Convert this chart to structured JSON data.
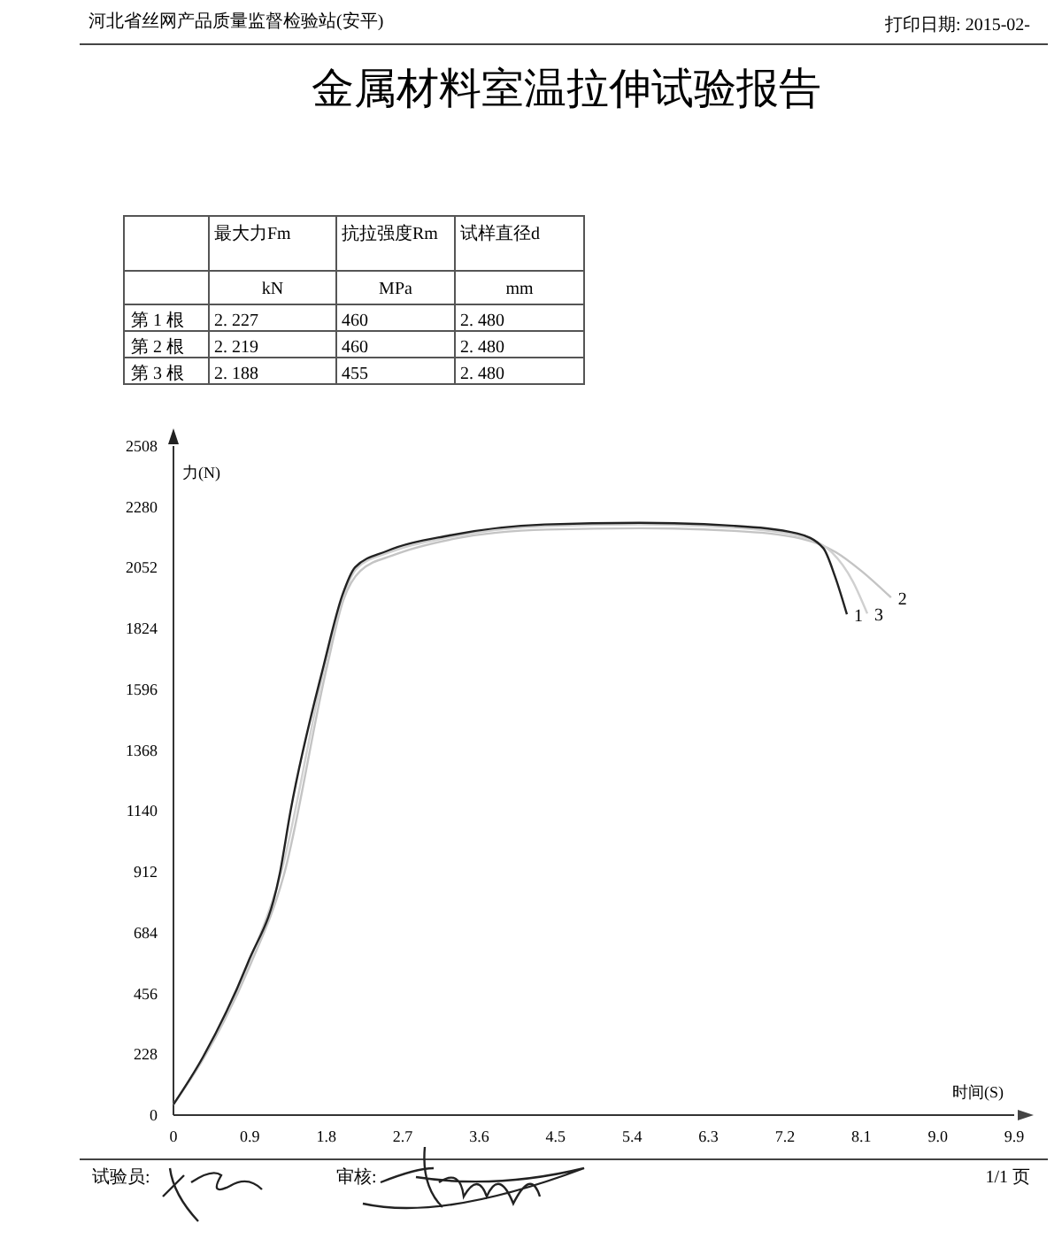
{
  "chart_data": [
    {
      "type": "other",
      "title": "金属材料室温拉伸试验报告",
      "annotations": [
        "河北省丝网产品质量监督检验站(安平)",
        "打印日期: 2015-02-",
        "试验员:",
        "审核:",
        "1/1 页"
      ],
      "cell_labels": [
        [
          null,
          "最大力Fm",
          "抗拉强度Rm",
          "试样直径d"
        ],
        [
          null,
          "kN",
          "MPa",
          "mm"
        ],
        [
          "第 1 根",
          "2. 227",
          "460",
          "2. 480"
        ],
        [
          "第 2 根",
          "2. 219",
          "460",
          "2. 480"
        ],
        [
          "第 3 根",
          "2. 188",
          "455",
          "2. 480"
        ]
      ]
    },
    {
      "type": "line",
      "xlabel": "时间(S)",
      "ylabel": "力(N)",
      "xlim": [
        0,
        9.9
      ],
      "ylim": [
        0,
        2508
      ],
      "xticks": [
        0,
        0.9,
        1.8,
        2.7,
        3.6,
        4.5,
        5.4,
        6.3,
        7.2,
        8.1,
        {
          "value": 9,
          "label": "9.0"
        },
        9.9
      ],
      "yticks": [
        0,
        228,
        456,
        684,
        912,
        1140,
        1368,
        1596,
        1824,
        2052,
        2280,
        2508
      ],
      "series": [
        {
          "name": "2",
          "color": "#c4c4c4",
          "x": [
            0,
            0.35,
            0.9,
            1.3,
            1.8,
            2.0,
            2.2,
            2.6,
            3.3,
            4.4,
            5.5,
            6.6,
            7.4,
            7.8,
            8.1,
            8.45
          ],
          "values": [
            40,
            210,
            560,
            900,
            1670,
            1930,
            2040,
            2100,
            2160,
            2195,
            2200,
            2190,
            2160,
            2110,
            2040,
            1940
          ]
        },
        {
          "name": "3",
          "color": "#d0d0d0",
          "x": [
            0,
            0.35,
            0.88,
            1.26,
            1.78,
            2.0,
            2.16,
            2.55,
            3.28,
            4.4,
            5.5,
            6.6,
            7.35,
            7.75,
            8.0,
            8.17
          ],
          "values": [
            40,
            215,
            565,
            900,
            1680,
            1945,
            2050,
            2110,
            2168,
            2208,
            2214,
            2202,
            2172,
            2110,
            2000,
            1880
          ]
        },
        {
          "name": "1",
          "color": "#222222",
          "x": [
            0,
            0.35,
            0.875,
            1.25,
            1.38,
            1.77,
            1.99,
            2.14,
            2.51,
            3.25,
            4.37,
            5.49,
            6.6,
            7.35,
            7.65,
            7.79,
            7.93
          ],
          "values": [
            40,
            219,
            570,
            902,
            1142,
            1687,
            1950,
            2054,
            2114,
            2173,
            2214,
            2220,
            2209,
            2180,
            2126,
            2019,
            1877
          ]
        }
      ]
    }
  ]
}
